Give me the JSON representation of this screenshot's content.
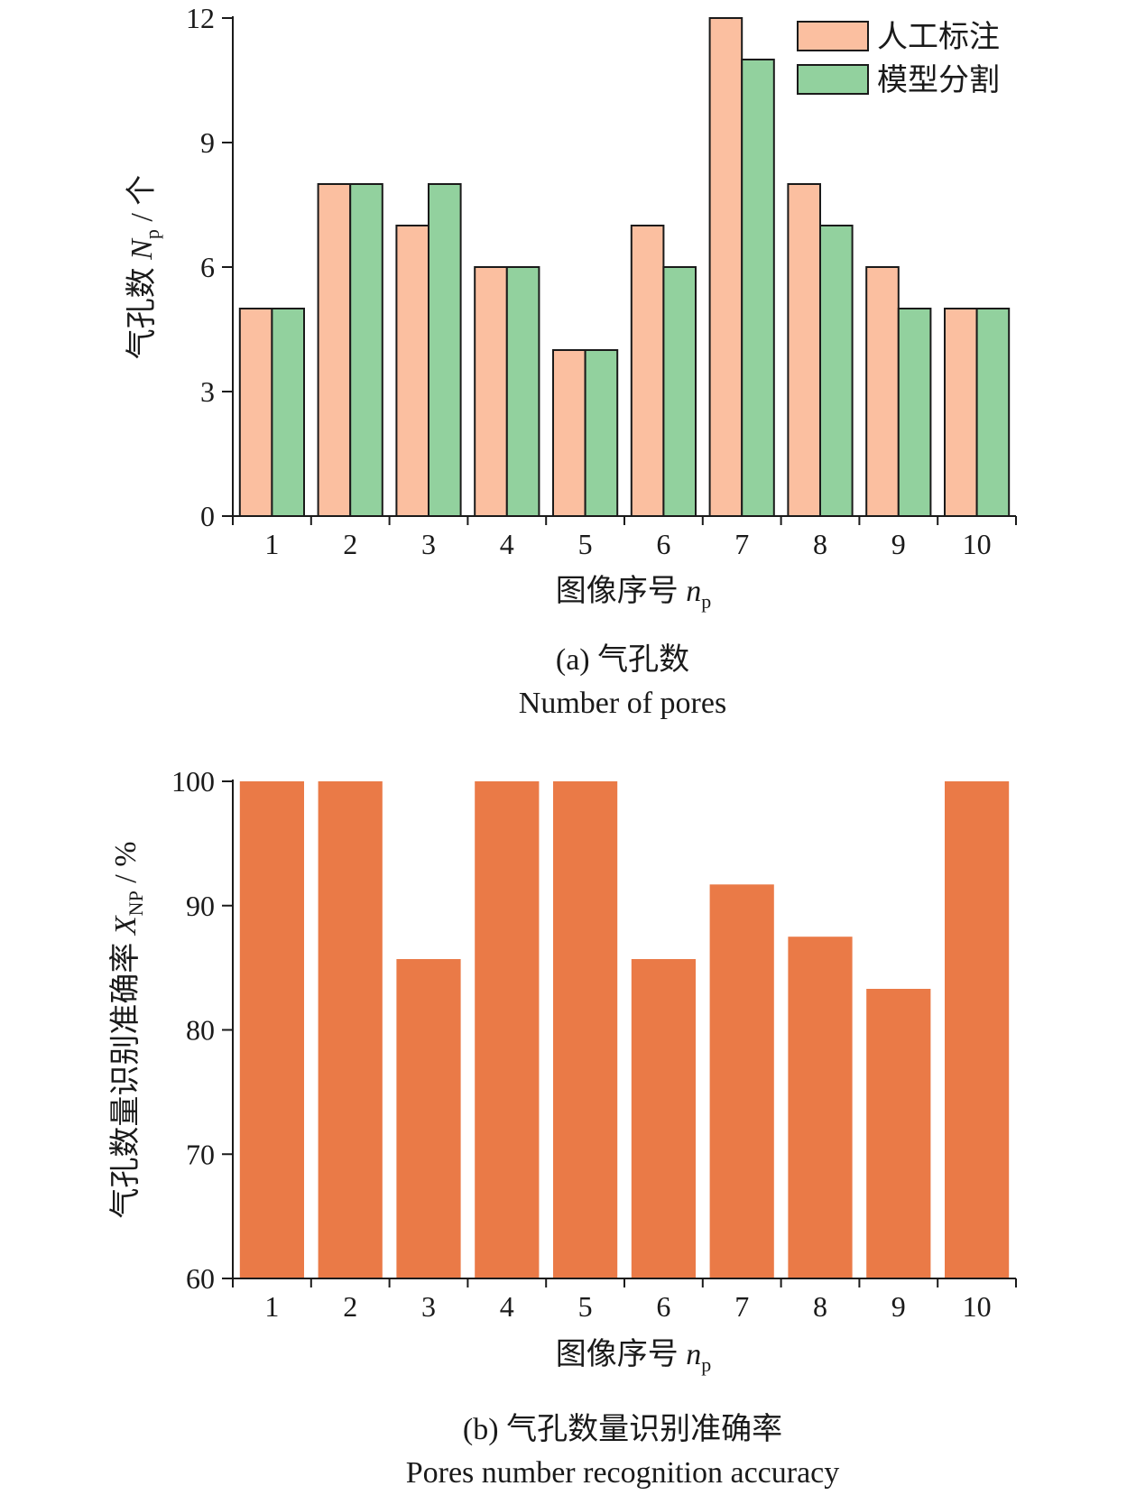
{
  "chart_data": [
    {
      "type": "bar",
      "panel": "a",
      "categories": [
        "1",
        "2",
        "3",
        "4",
        "5",
        "6",
        "7",
        "8",
        "9",
        "10"
      ],
      "series": [
        {
          "name": "人工标注",
          "values": [
            5,
            8,
            7,
            6,
            4,
            7,
            12,
            8,
            6,
            5
          ],
          "color": "#fbbfa0"
        },
        {
          "name": "模型分割",
          "values": [
            5,
            8,
            8,
            6,
            4,
            6,
            11,
            7,
            5,
            5
          ],
          "color": "#92d19e"
        }
      ],
      "ylim": [
        0,
        12
      ],
      "yticks": [
        "0",
        "3",
        "6",
        "9",
        "12"
      ],
      "ylabel": {
        "prefix": "气孔数 ",
        "var": "N",
        "sub": "p",
        "suffix": " / 个"
      },
      "xlabel": {
        "prefix": "图像序号 ",
        "var": "n",
        "sub": "p"
      },
      "caption_cn": "(a) 气孔数",
      "caption_en": "Number of pores",
      "legend": "top-right",
      "grid": false
    },
    {
      "type": "bar",
      "panel": "b",
      "categories": [
        "1",
        "2",
        "3",
        "4",
        "5",
        "6",
        "7",
        "8",
        "9",
        "10"
      ],
      "series": [
        {
          "values": [
            100,
            100,
            85.7,
            100,
            100,
            85.7,
            91.7,
            87.5,
            83.3,
            100
          ],
          "color": "#ea7a47"
        }
      ],
      "ylim": [
        60,
        100
      ],
      "yticks": [
        "60",
        "70",
        "80",
        "90",
        "100"
      ],
      "ylabel": {
        "prefix": "气孔数量识别准确率 ",
        "var": "X",
        "sub": "NP",
        "suffix": " / %"
      },
      "xlabel": {
        "prefix": "图像序号 ",
        "var": "n",
        "sub": "p"
      },
      "caption_cn": "(b) 气孔数量识别准确率",
      "caption_en": "Pores number recognition accuracy",
      "grid": false
    }
  ]
}
